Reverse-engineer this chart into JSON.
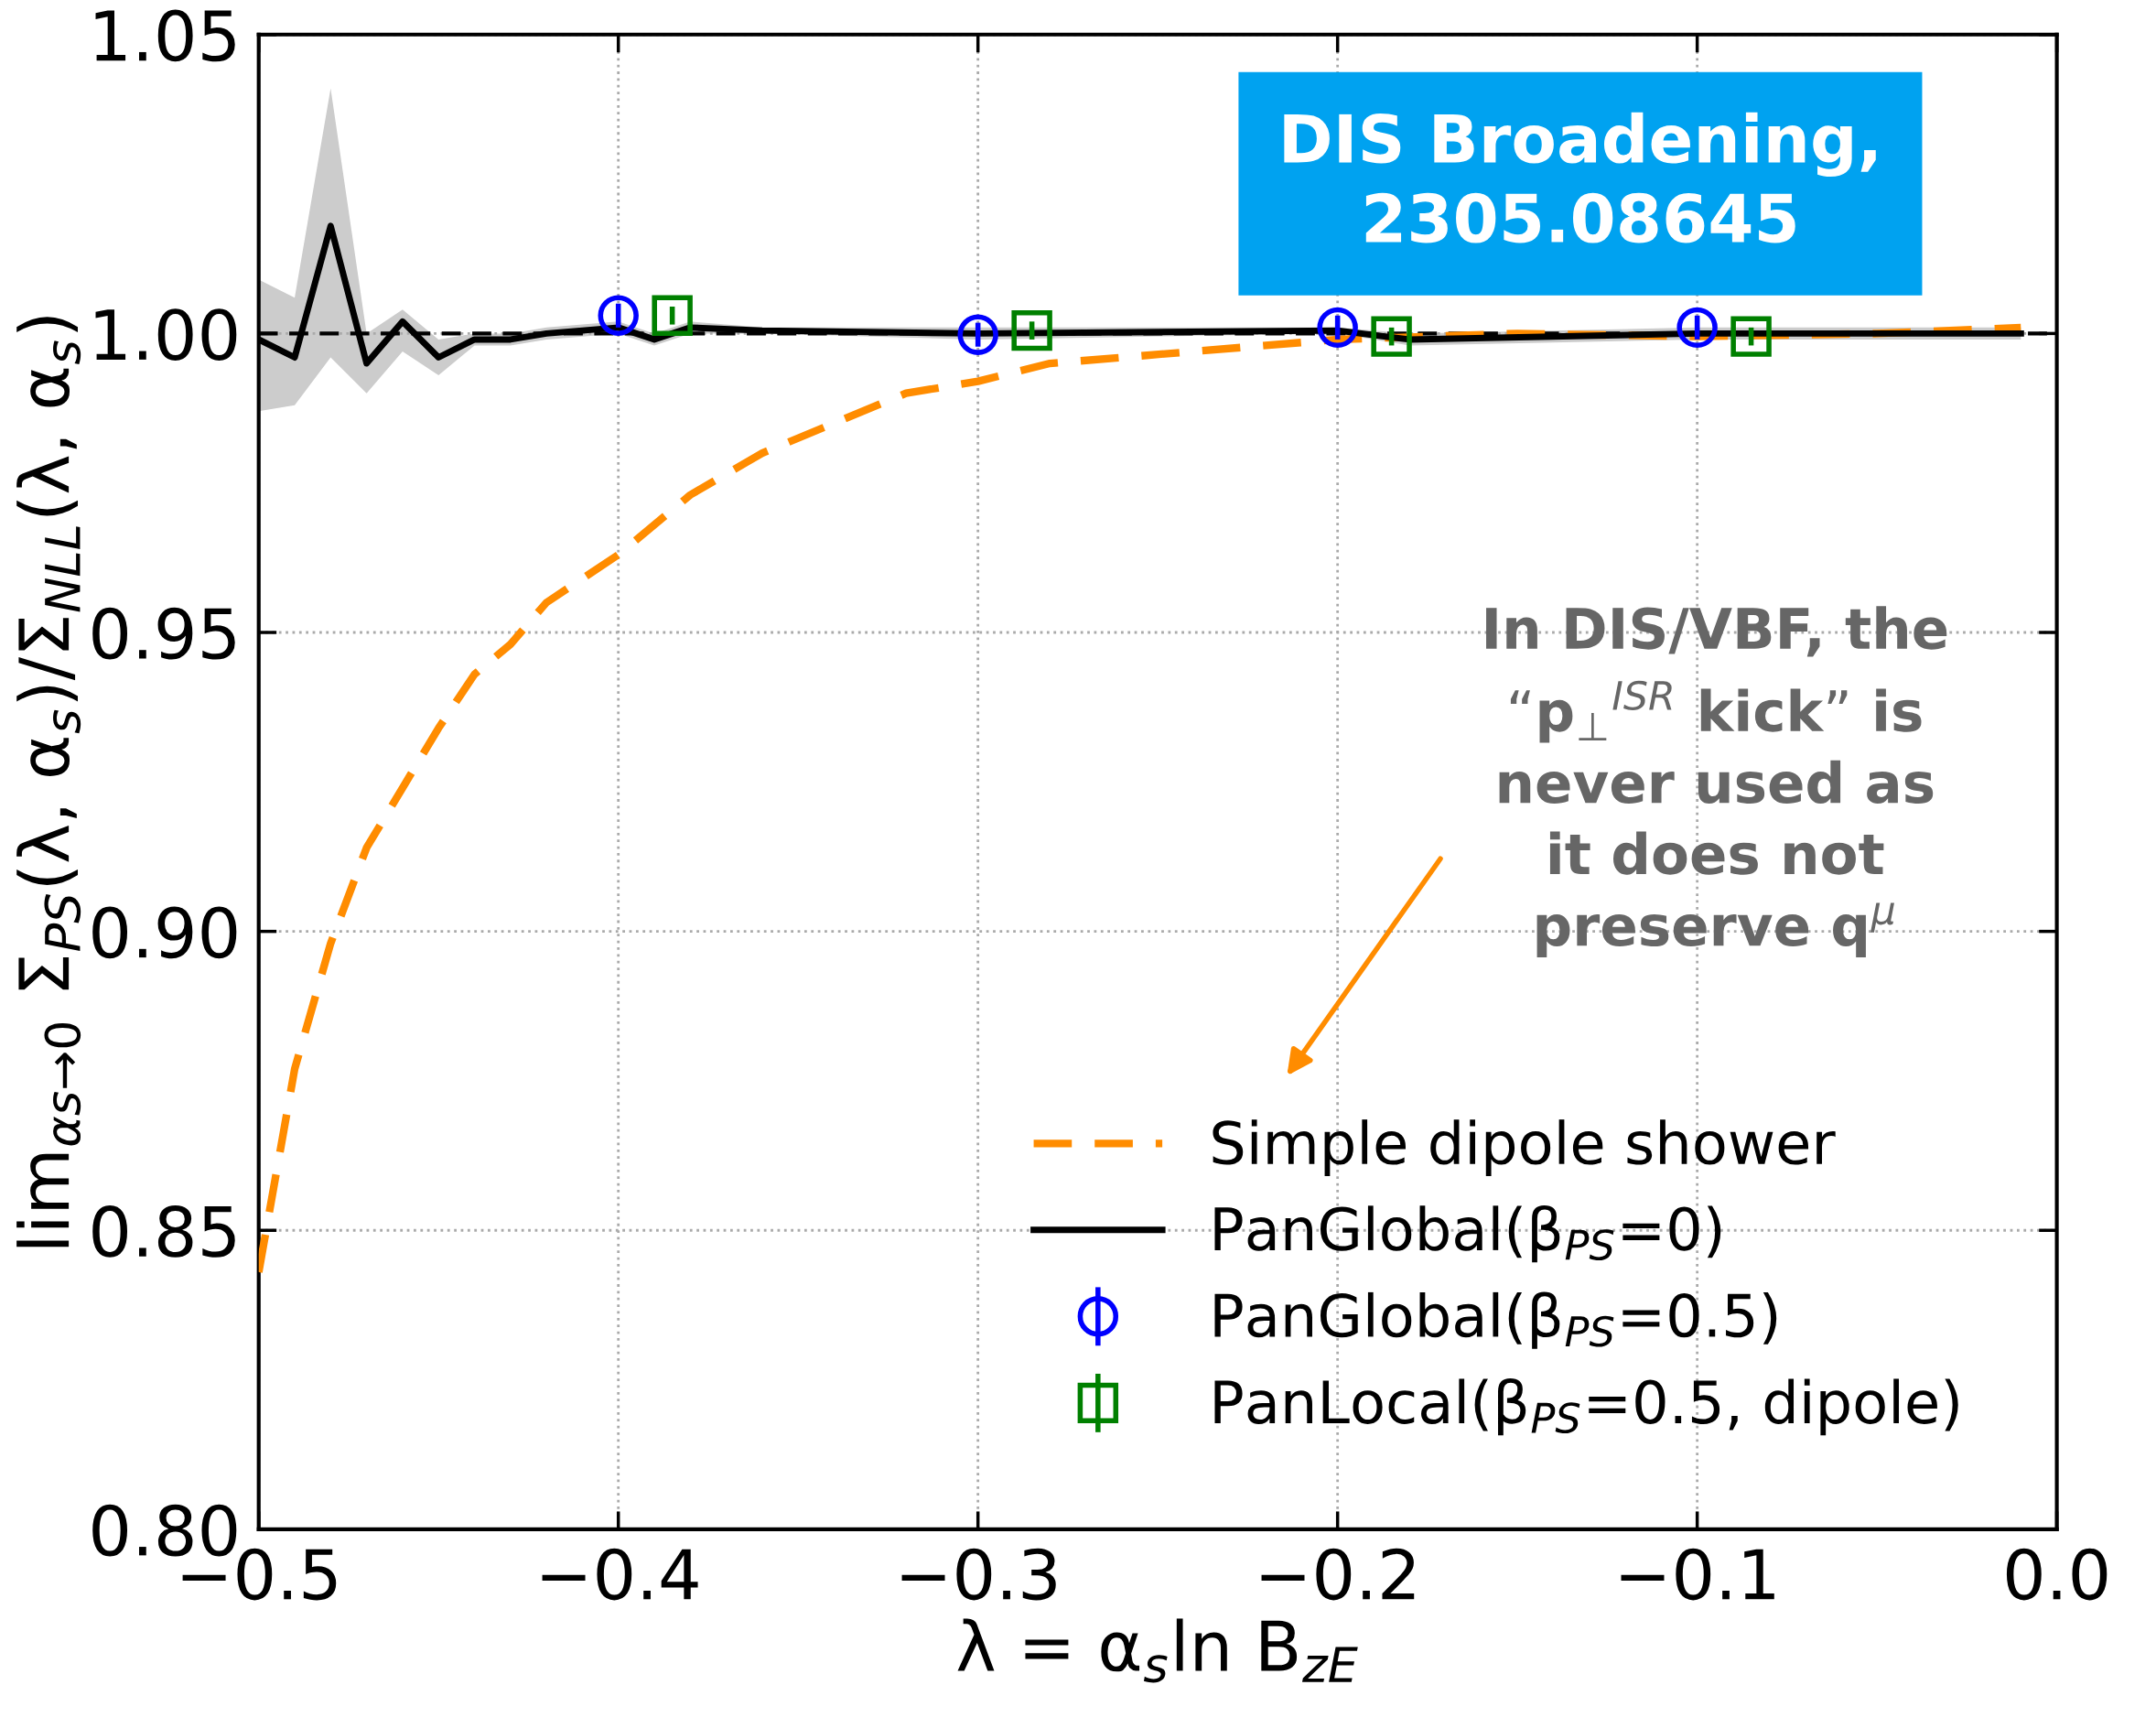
{
  "chart_data": {
    "type": "line",
    "xlabel": "λ = α$_{s}$ln B$_{zE}$",
    "ylabel": "lim$_{αs→0}$ Σ$_{PS}$(λ, α$_{s}$)/Σ$_{NLL}$(λ, α$_{s}$)",
    "xlim": [
      -0.5,
      0.0
    ],
    "ylim": [
      0.8,
      1.05
    ],
    "xticks": [
      {
        "value": -0.5,
        "label": "−0.5"
      },
      {
        "value": -0.4,
        "label": "−0.4"
      },
      {
        "value": -0.3,
        "label": "−0.3"
      },
      {
        "value": -0.2,
        "label": "−0.2"
      },
      {
        "value": -0.1,
        "label": "−0.1"
      },
      {
        "value": 0.0,
        "label": "0.0"
      }
    ],
    "yticks": [
      {
        "value": 0.8,
        "label": "0.80"
      },
      {
        "value": 0.85,
        "label": "0.85"
      },
      {
        "value": 0.9,
        "label": "0.90"
      },
      {
        "value": 0.95,
        "label": "0.95"
      },
      {
        "value": 1.0,
        "label": "1.00"
      },
      {
        "value": 1.05,
        "label": "1.05"
      }
    ],
    "grid": true,
    "legend": "bottom right",
    "ref_lines": [
      {
        "axis": "y",
        "value": 1.0,
        "color": "#000000",
        "line_style": "dashed"
      }
    ],
    "annotations": [
      "DIS Broadening,\n2305.08645",
      "In DIS/VBF, the\n“p$_{⊥}$$^{ISR}$ kick” is\nnever used as\nit does not\npreserve q$^{μ}$"
    ],
    "series": [
      {
        "name": "Simple dipole shower",
        "color": "#ff8c00",
        "line_style": "dashed",
        "marker": "none",
        "x": [
          -0.5,
          -0.49,
          -0.48,
          -0.47,
          -0.46,
          -0.45,
          -0.44,
          -0.43,
          -0.42,
          -0.4,
          -0.38,
          -0.36,
          -0.34,
          -0.32,
          -0.3,
          -0.28,
          -0.26,
          -0.24,
          -0.22,
          -0.2,
          -0.15,
          -0.1,
          -0.05,
          -0.01
        ],
        "values": [
          0.843,
          0.877,
          0.898,
          0.914,
          0.924,
          0.934,
          0.943,
          0.948,
          0.955,
          0.963,
          0.973,
          0.98,
          0.985,
          0.99,
          0.992,
          0.995,
          0.996,
          0.997,
          0.998,
          0.999,
          1.0,
          0.9995,
          1.0,
          1.001
        ]
      },
      {
        "name": "PanGlobal(β$_{PS}$=0)",
        "color": "#000000",
        "line_style": "solid",
        "marker": "none",
        "x": [
          -0.5,
          -0.49,
          -0.48,
          -0.47,
          -0.46,
          -0.45,
          -0.44,
          -0.43,
          -0.42,
          -0.4,
          -0.39,
          -0.38,
          -0.36,
          -0.3,
          -0.2,
          -0.18,
          -0.1,
          -0.01
        ],
        "values": [
          0.999,
          0.996,
          1.018,
          0.995,
          1.002,
          0.996,
          0.999,
          0.999,
          1.0,
          1.001,
          0.999,
          1.001,
          1.0005,
          1.0,
          1.0005,
          0.999,
          1.0,
          1.0
        ],
        "lower": [
          0.987,
          0.988,
          0.996,
          0.99,
          0.997,
          0.993,
          0.998,
          0.998,
          0.999,
          1.0,
          0.998,
          1.0,
          1.0,
          0.999,
          1.0,
          0.998,
          0.999,
          0.999
        ],
        "upper": [
          1.009,
          1.006,
          1.041,
          1.0,
          1.004,
          0.999,
          1.0,
          1.0,
          1.001,
          1.002,
          1.0,
          1.002,
          1.001,
          1.001,
          1.001,
          1.0,
          1.001,
          1.001
        ]
      },
      {
        "name": "PanGlobal(β$_{PS}$=0.5)",
        "type": "scatter",
        "color": "#0000ff",
        "marker": "circle",
        "x": [
          -0.4,
          -0.3,
          -0.2,
          -0.1
        ],
        "values": [
          1.003,
          0.9998,
          1.001,
          1.001
        ],
        "errors": [
          0.002,
          0.002,
          0.002,
          0.002
        ]
      },
      {
        "name": "PanLocal(β$_{PS}$=0.5, dipole)",
        "type": "scatter",
        "color": "#008000",
        "marker": "square",
        "x": [
          -0.385,
          -0.285,
          -0.185,
          -0.085
        ],
        "values": [
          1.003,
          1.0005,
          0.9995,
          0.9995
        ],
        "errors": [
          0.0015,
          0.0015,
          0.0015,
          0.0015
        ]
      }
    ]
  }
}
